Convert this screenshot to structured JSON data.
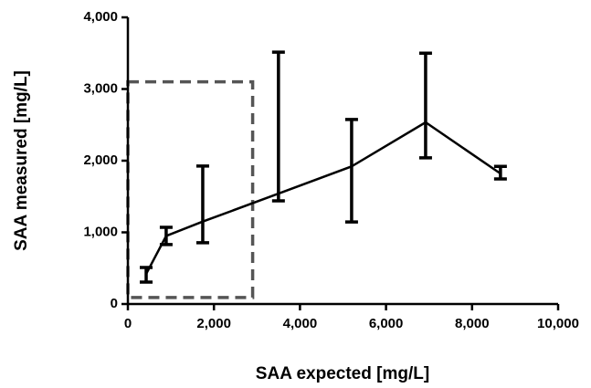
{
  "chart_data": {
    "type": "line",
    "x_label": "SAA expected [mg/L]",
    "y_label": "SAA measured [mg/L]",
    "x": [
      425,
      890,
      1740,
      3500,
      5200,
      6920,
      8660
    ],
    "values": [
      420,
      950,
      1150,
      1540,
      1920,
      2535,
      1820
    ],
    "low": [
      305,
      830,
      855,
      1440,
      1145,
      2040,
      1745
    ],
    "high": [
      510,
      1070,
      1925,
      3515,
      2575,
      3500,
      1920
    ],
    "color": "#000000",
    "xlim": [
      0,
      10000
    ],
    "ylim": [
      0,
      4000
    ],
    "xticks": [
      0,
      {
        "value": 2000,
        "label": "2,000"
      },
      {
        "value": 4000,
        "label": "4,000"
      },
      {
        "value": 6000,
        "label": "6,000"
      },
      {
        "value": 8000,
        "label": "8,000"
      },
      {
        "value": 10000,
        "label": "10,000"
      }
    ],
    "yticks": [
      0,
      {
        "value": 1000,
        "label": "1,000"
      },
      {
        "value": 2000,
        "label": "2,000"
      },
      {
        "value": 3000,
        "label": "3,000"
      },
      {
        "value": 4000,
        "label": "4,000"
      }
    ],
    "highlight_box": {
      "xlim": [
        0,
        2900
      ],
      "ylim": [
        90,
        3100
      ],
      "color": "#555555"
    }
  }
}
